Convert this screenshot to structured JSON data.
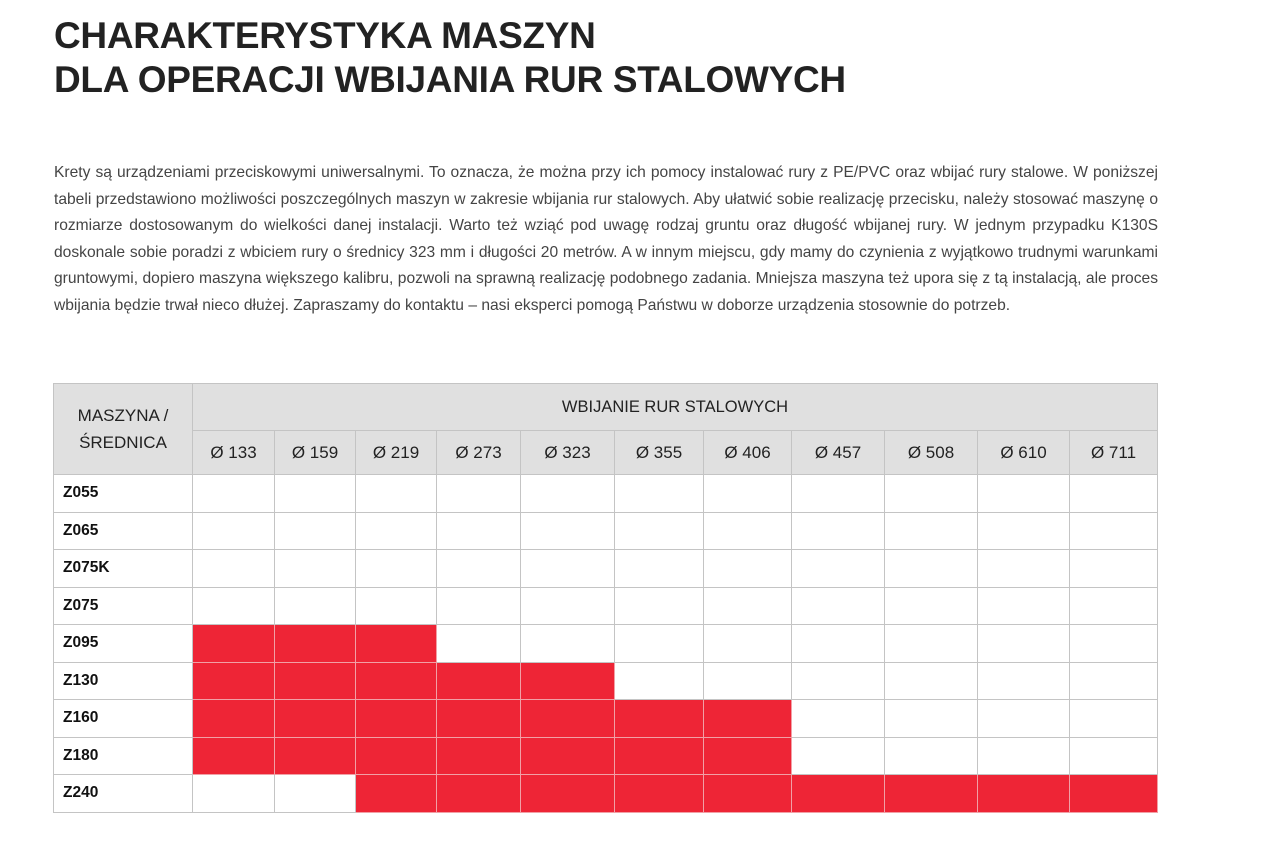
{
  "title": {
    "line1": "CHARAKTERYSTYKA MASZYN",
    "line2": "DLA OPERACJI WBIJANIA RUR STALOWYCH"
  },
  "intro": "Krety są urządzeniami przeciskowymi uniwersalnymi. To oznacza, że można przy ich pomocy instalować rury z PE/PVC oraz wbijać rury stalowe. W poniższej tabeli przedstawiono możliwości poszczególnych maszyn w zakresie wbijania rur stalowych. Aby ułatwić sobie realizację przecisku, należy stosować maszynę o rozmiarze dostosowanym do wielkości danej instalacji. Warto też wziąć pod uwagę rodzaj gruntu oraz długość wbijanej rury. W jednym przypadku K130S doskonale sobie poradzi z wbiciem rury o średnicy 323 mm i długości 20 metrów. A w in­nym miejscu, gdy mamy do czynienia z wyjątkowo trudnymi warunkami gruntowymi, dopiero maszyna większego kalibru, pozwoli na sprawną realizację podobnego zadania. Mniejsza maszyna też upora się z tą instalacją, ale proces wbijania będzie trwał nieco dłużej. Zapraszamy do kontaktu – nasi eksperci pomogą Państwu w doborze urządzenia stosownie do potrzeb.",
  "table": {
    "corner_line1": "MASZYNA /",
    "corner_line2": "ŚREDNICA",
    "group_header": "WBIJANIE RUR STALOWYCH",
    "columns": [
      "Ø 133",
      "Ø 159",
      "Ø 219",
      "Ø 273",
      "Ø 323",
      "Ø 355",
      "Ø 406",
      "Ø 457",
      "Ø 508",
      "Ø 610",
      "Ø 711"
    ],
    "fill_color": "#ee2536",
    "rows": [
      {
        "machine": "Z055",
        "capable": [
          0,
          0,
          0,
          0,
          0,
          0,
          0,
          0,
          0,
          0,
          0
        ]
      },
      {
        "machine": "Z065",
        "capable": [
          0,
          0,
          0,
          0,
          0,
          0,
          0,
          0,
          0,
          0,
          0
        ]
      },
      {
        "machine": "Z075K",
        "capable": [
          0,
          0,
          0,
          0,
          0,
          0,
          0,
          0,
          0,
          0,
          0
        ]
      },
      {
        "machine": "Z075",
        "capable": [
          0,
          0,
          0,
          0,
          0,
          0,
          0,
          0,
          0,
          0,
          0
        ]
      },
      {
        "machine": "Z095",
        "capable": [
          1,
          1,
          1,
          0,
          0,
          0,
          0,
          0,
          0,
          0,
          0
        ]
      },
      {
        "machine": "Z130",
        "capable": [
          1,
          1,
          1,
          1,
          1,
          0,
          0,
          0,
          0,
          0,
          0
        ]
      },
      {
        "machine": "Z160",
        "capable": [
          1,
          1,
          1,
          1,
          1,
          1,
          1,
          0,
          0,
          0,
          0
        ]
      },
      {
        "machine": "Z180",
        "capable": [
          1,
          1,
          1,
          1,
          1,
          1,
          1,
          0,
          0,
          0,
          0
        ]
      },
      {
        "machine": "Z240",
        "capable": [
          0,
          0,
          1,
          1,
          1,
          1,
          1,
          1,
          1,
          1,
          1
        ]
      }
    ]
  }
}
